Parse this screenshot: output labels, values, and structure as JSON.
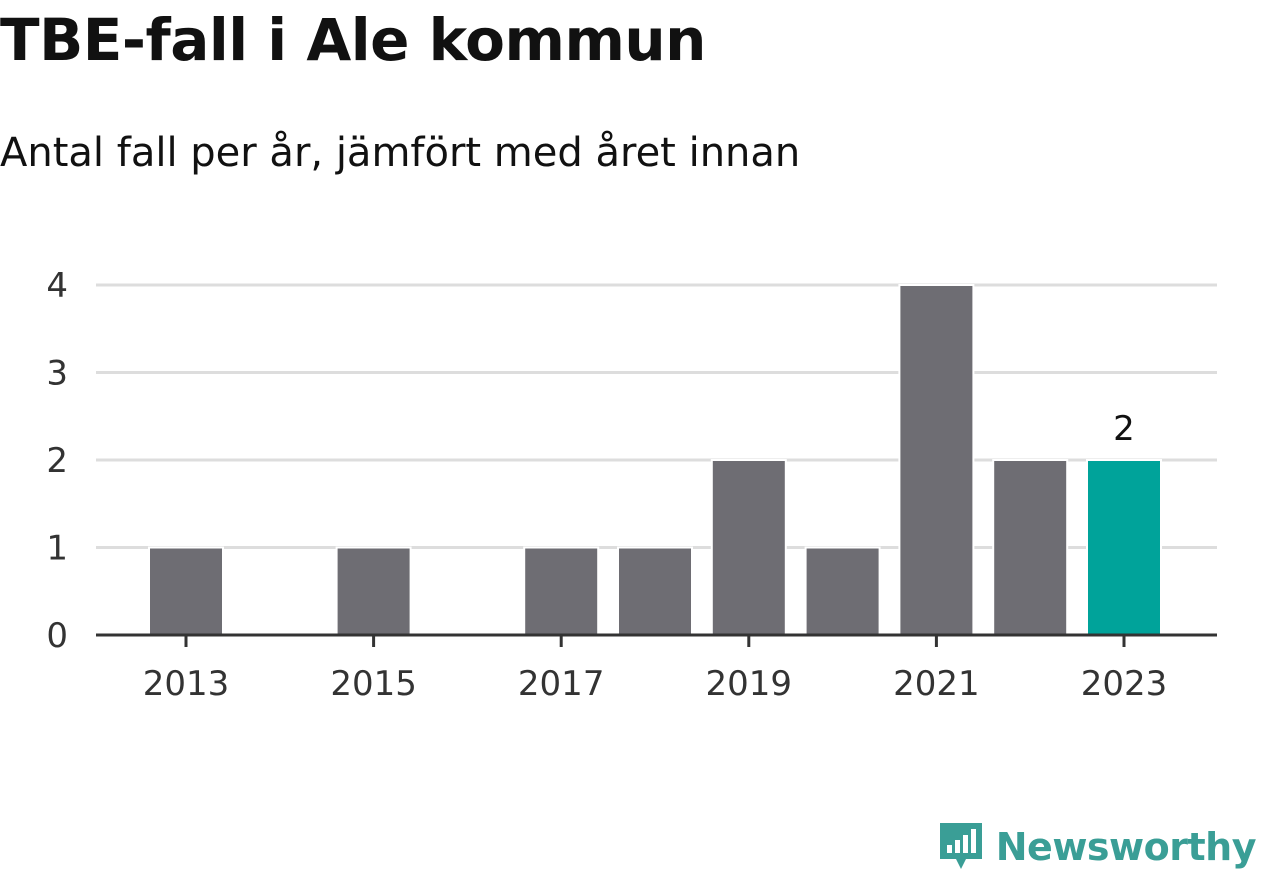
{
  "header": {
    "title": "TBE-fall i Ale kommun",
    "subtitle": "Antal fall per år, jämfört med året innan"
  },
  "chart_data": {
    "type": "bar",
    "categories": [
      2013,
      2014,
      2015,
      2016,
      2017,
      2018,
      2019,
      2020,
      2021,
      2022,
      2023
    ],
    "values": [
      1,
      0,
      1,
      0,
      1,
      1,
      2,
      1,
      4,
      2,
      2
    ],
    "x_tick_labels": [
      "2013",
      "2015",
      "2017",
      "2019",
      "2021",
      "2023"
    ],
    "y_ticks": [
      0,
      1,
      2,
      3,
      4
    ],
    "ylim": [
      0,
      4
    ],
    "highlight": {
      "category": 2023,
      "label": "2"
    },
    "grid": true,
    "colors": {
      "bar": "#6e6d73",
      "highlight": "#00a39a",
      "grid": "#dddddd",
      "axis": "#333333",
      "tick_text": "#333333"
    }
  },
  "branding": {
    "logo_text": "Newsworthy",
    "logo_icon": "bar-chart-speech-bubble-icon",
    "color": "#3a9e96"
  }
}
